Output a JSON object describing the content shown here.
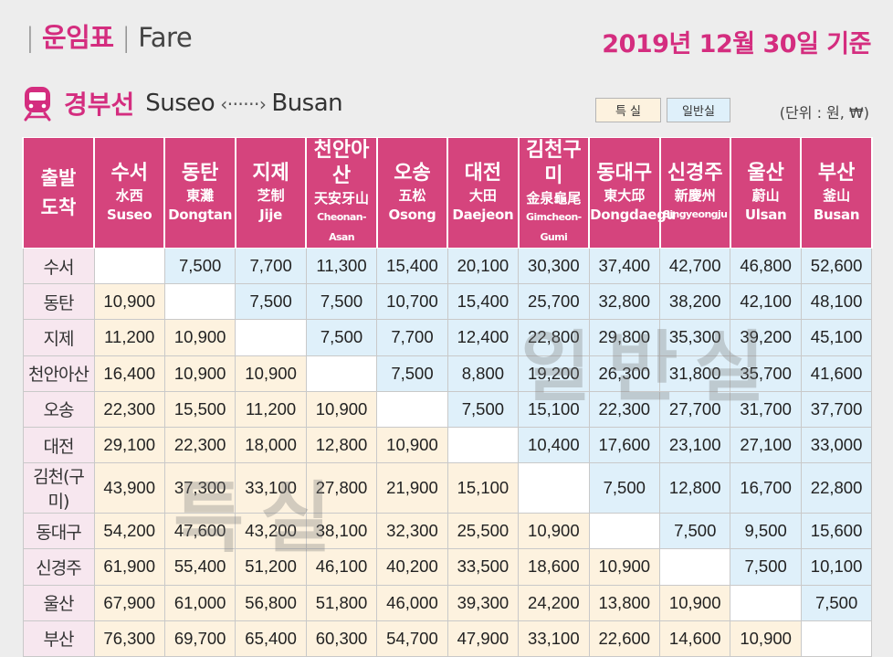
{
  "header": {
    "title_ko": "운임표",
    "title_en": "Fare",
    "date": "2019년 12월 30일 기준"
  },
  "line": {
    "icon": "train-icon",
    "name": "경부선",
    "from": "Suseo",
    "arrow": "‹······›",
    "to": "Busan"
  },
  "legend": {
    "first": "특 실",
    "economy": "일반실"
  },
  "unit": "(단위 : 원, ₩)",
  "corner": {
    "top": "출발",
    "bottom": "도착"
  },
  "stations": [
    {
      "ko": "수서",
      "hanja": "水西",
      "en": "Suseo"
    },
    {
      "ko": "동탄",
      "hanja": "東灘",
      "en": "Dongtan"
    },
    {
      "ko": "지제",
      "hanja": "芝制",
      "en": "Jije"
    },
    {
      "ko": "천안아산",
      "hanja": "天安牙山",
      "en": "Cheonan-Asan"
    },
    {
      "ko": "오송",
      "hanja": "五松",
      "en": "Osong"
    },
    {
      "ko": "대전",
      "hanja": "大田",
      "en": "Daejeon"
    },
    {
      "ko": "김천구미",
      "hanja": "金泉龜尾",
      "en": "Gimcheon-Gumi"
    },
    {
      "ko": "동대구",
      "hanja": "東大邱",
      "en": "Dongdaegu"
    },
    {
      "ko": "신경주",
      "hanja": "新慶州",
      "en": "Singyeongju"
    },
    {
      "ko": "울산",
      "hanja": "蔚山",
      "en": "Ulsan"
    },
    {
      "ko": "부산",
      "hanja": "釜山",
      "en": "Busan"
    }
  ],
  "rows": [
    {
      "label": "수서",
      "cells": [
        "",
        "7,500",
        "7,700",
        "11,300",
        "15,400",
        "20,100",
        "30,300",
        "37,400",
        "42,700",
        "46,800",
        "52,600"
      ]
    },
    {
      "label": "동탄",
      "cells": [
        "10,900",
        "",
        "7,500",
        "7,500",
        "10,700",
        "15,400",
        "25,700",
        "32,800",
        "38,200",
        "42,100",
        "48,100"
      ]
    },
    {
      "label": "지제",
      "cells": [
        "11,200",
        "10,900",
        "",
        "7,500",
        "7,700",
        "12,400",
        "22,800",
        "29,800",
        "35,300",
        "39,200",
        "45,100"
      ]
    },
    {
      "label": "천안아산",
      "cells": [
        "16,400",
        "10,900",
        "10,900",
        "",
        "7,500",
        "8,800",
        "19,200",
        "26,300",
        "31,800",
        "35,700",
        "41,600"
      ]
    },
    {
      "label": "오송",
      "cells": [
        "22,300",
        "15,500",
        "11,200",
        "10,900",
        "",
        "7,500",
        "15,100",
        "22,300",
        "27,700",
        "31,700",
        "37,700"
      ]
    },
    {
      "label": "대전",
      "cells": [
        "29,100",
        "22,300",
        "18,000",
        "12,800",
        "10,900",
        "",
        "10,400",
        "17,600",
        "23,100",
        "27,100",
        "33,000"
      ]
    },
    {
      "label": "김천(구미)",
      "cells": [
        "43,900",
        "37,300",
        "33,100",
        "27,800",
        "21,900",
        "15,100",
        "",
        "7,500",
        "12,800",
        "16,700",
        "22,800"
      ]
    },
    {
      "label": "동대구",
      "cells": [
        "54,200",
        "47,600",
        "43,200",
        "38,100",
        "32,300",
        "25,500",
        "10,900",
        "",
        "7,500",
        "9,500",
        "15,600"
      ]
    },
    {
      "label": "신경주",
      "cells": [
        "61,900",
        "55,400",
        "51,200",
        "46,100",
        "40,200",
        "33,500",
        "18,600",
        "10,900",
        "",
        "7,500",
        "10,100"
      ]
    },
    {
      "label": "울산",
      "cells": [
        "67,900",
        "61,000",
        "56,800",
        "51,800",
        "46,000",
        "39,300",
        "24,200",
        "13,800",
        "10,900",
        "",
        "7,500"
      ]
    },
    {
      "label": "부산",
      "cells": [
        "76,300",
        "69,700",
        "65,400",
        "60,300",
        "54,700",
        "47,900",
        "33,100",
        "22,600",
        "14,600",
        "10,900",
        ""
      ]
    }
  ],
  "watermarks": {
    "economy": "일반실",
    "first": "특실"
  },
  "colors": {
    "accent": "#d42d7f",
    "header_bg": "#d5447d",
    "first_class": "#fdf2df",
    "economy": "#dff0fa"
  }
}
